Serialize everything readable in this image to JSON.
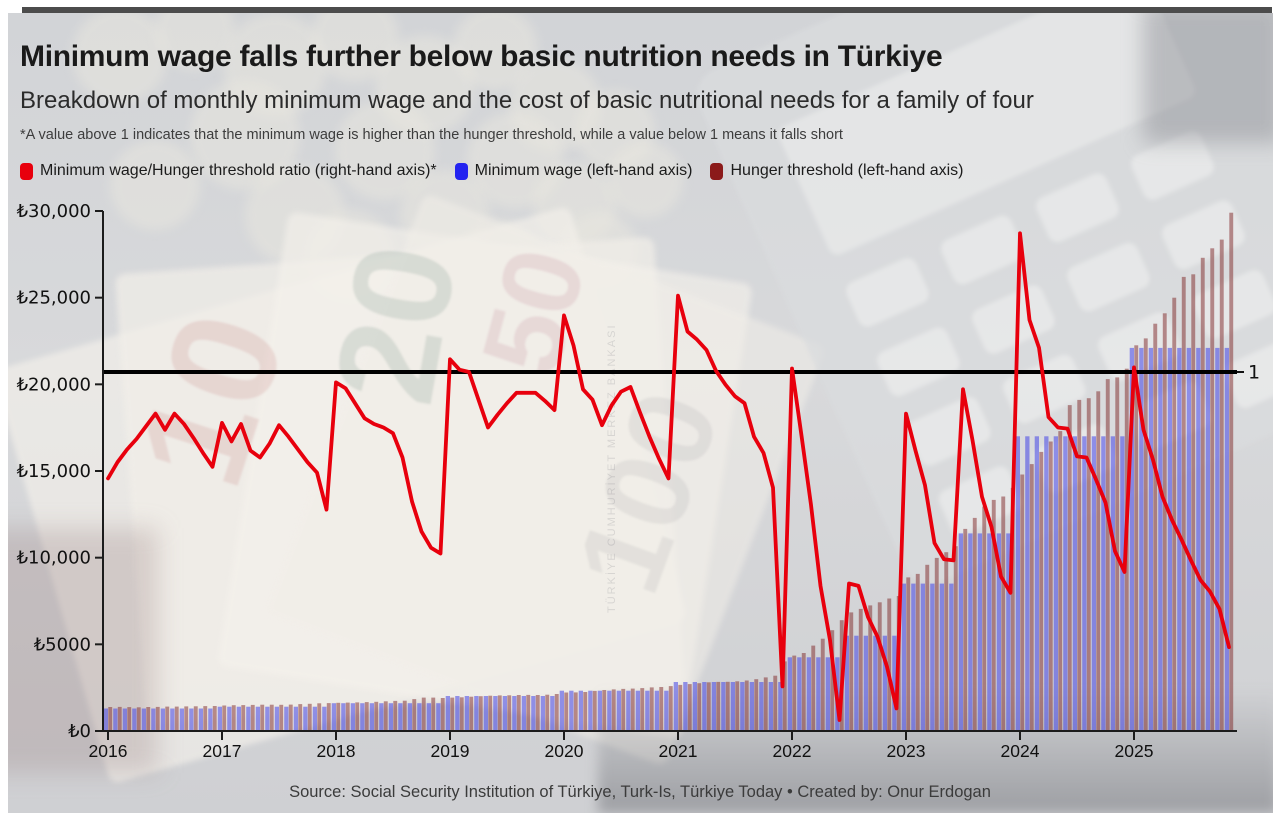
{
  "header": {
    "title": "Minimum wage falls further below basic nutrition needs in Türkiye",
    "subtitle": "Breakdown of monthly minimum wage and the cost of basic nutritional needs for a family of four",
    "footnote": "*A value above 1 indicates that the minimum wage is higher than the hunger threshold, while a value below 1 means it falls short"
  },
  "legend": {
    "items": [
      {
        "label": "Minimum wage/Hunger threshold ratio (right-hand axis)*",
        "color": "#e8000d"
      },
      {
        "label": "Minimum wage (left-hand axis)",
        "color": "#2323f0"
      },
      {
        "label": "Hunger threshold (left-hand axis)",
        "color": "#8b1a1a"
      }
    ]
  },
  "footer": {
    "source": "Source: Social Security Institution of Türkiye, Turk-Is, Türkiye Today • Created by: Onur Erdogan"
  },
  "chart_data": {
    "type": "bar+line",
    "frequency": "monthly",
    "x_start": "2016-01",
    "x_end": "2025-11",
    "x_tick_years": [
      "2016",
      "2017",
      "2018",
      "2019",
      "2020",
      "2021",
      "2022",
      "2023",
      "2024",
      "2025"
    ],
    "left_axis": {
      "currency": "TRY",
      "min": 0,
      "max": 30000,
      "tick_values": [
        0,
        5000,
        10000,
        15000,
        20000,
        25000,
        30000
      ],
      "tick_labels": [
        "₺0",
        "₺5000",
        "₺10,000",
        "₺15,000",
        "₺20,000",
        "₺25,000",
        "₺30,000"
      ]
    },
    "right_axis": {
      "min": 0.69,
      "max": 1.14,
      "visible_label": "1",
      "visible_label_value": 1
    },
    "reference_line": {
      "value": 1,
      "axis": "right",
      "color": "#000000"
    },
    "grid": "off",
    "legend_position": "top-left",
    "series": [
      {
        "name": "Minimum wage",
        "type": "bar",
        "axis": "left",
        "unit": "TRY/month",
        "color": "#4343e6",
        "values": [
          1300,
          1300,
          1300,
          1300,
          1300,
          1300,
          1300,
          1300,
          1300,
          1300,
          1300,
          1300,
          1404,
          1404,
          1404,
          1404,
          1404,
          1404,
          1404,
          1404,
          1404,
          1404,
          1404,
          1404,
          1603,
          1603,
          1603,
          1603,
          1603,
          1603,
          1603,
          1603,
          1603,
          1603,
          1603,
          1603,
          2020,
          2020,
          2020,
          2020,
          2020,
          2020,
          2020,
          2020,
          2020,
          2020,
          2020,
          2020,
          2324,
          2324,
          2324,
          2324,
          2324,
          2324,
          2324,
          2324,
          2324,
          2324,
          2324,
          2324,
          2826,
          2826,
          2826,
          2826,
          2826,
          2826,
          2826,
          2826,
          2826,
          2826,
          2826,
          2826,
          4253,
          4253,
          4253,
          4253,
          4253,
          4253,
          5500,
          5500,
          5500,
          5500,
          5500,
          5500,
          8506,
          8506,
          8506,
          8506,
          8506,
          8506,
          11402,
          11402,
          11402,
          11402,
          11402,
          11402,
          17002,
          17002,
          17002,
          17002,
          17002,
          17002,
          17002,
          17002,
          17002,
          17002,
          17002,
          17002,
          22104,
          22104,
          22104,
          22104,
          22104,
          22104,
          22104,
          22104,
          22104,
          22104,
          22104
        ]
      },
      {
        "name": "Hunger threshold",
        "type": "bar",
        "axis": "left",
        "unit": "TRY/month",
        "color": "#7d2626",
        "values": [
          1386,
          1389,
          1379,
          1369,
          1386,
          1391,
          1408,
          1409,
          1419,
          1424,
          1439,
          1443,
          1473,
          1490,
          1494,
          1504,
          1518,
          1516,
          1513,
          1522,
          1553,
          1572,
          1598,
          1608,
          1626,
          1641,
          1651,
          1669,
          1686,
          1712,
          1737,
          1749,
          1839,
          1928,
          1926,
          1904,
          1929,
          1946,
          1977,
          2009,
          2034,
          2053,
          2062,
          2077,
          2080,
          2079,
          2095,
          2135,
          2219,
          2229,
          2252,
          2315,
          2368,
          2400,
          2428,
          2444,
          2477,
          2516,
          2539,
          2590,
          2660,
          2704,
          2756,
          2810,
          2830,
          2837,
          2866,
          2916,
          2986,
          3093,
          3193,
          4013,
          4349,
          4500,
          4928,
          5323,
          5818,
          6391,
          6840,
          7045,
          7245,
          7425,
          7647,
          7786,
          8864,
          9062,
          9591,
          9988,
          10317,
          10662,
          11658,
          12297,
          12954,
          13334,
          13526,
          14025,
          14800,
          15400,
          16100,
          16700,
          17300,
          18800,
          19100,
          19200,
          19600,
          20300,
          20400,
          20900,
          22250,
          22650,
          23500,
          24100,
          25000,
          26200,
          26350,
          27300,
          27850,
          28350,
          29900
        ]
      },
      {
        "name": "Minimum wage/Hunger threshold ratio",
        "type": "line",
        "axis": "right",
        "unit": "ratio",
        "color": "#e8000d",
        "values": [
          0.908,
          0.922,
          0.933,
          0.942,
          0.953,
          0.964,
          0.95,
          0.964,
          0.955,
          0.943,
          0.93,
          0.918,
          0.956,
          0.94,
          0.955,
          0.932,
          0.926,
          0.938,
          0.954,
          0.944,
          0.933,
          0.922,
          0.913,
          0.881,
          0.991,
          0.986,
          0.973,
          0.96,
          0.955,
          0.952,
          0.947,
          0.926,
          0.888,
          0.862,
          0.848,
          0.843,
          1.011,
          1.002,
          1.0,
          0.976,
          0.952,
          0.963,
          0.973,
          0.982,
          0.982,
          0.982,
          0.975,
          0.967,
          1.049,
          1.023,
          0.985,
          0.976,
          0.954,
          0.971,
          0.983,
          0.987,
          0.965,
          0.944,
          0.925,
          0.908,
          1.066,
          1.035,
          1.028,
          1.019,
          1.001,
          0.989,
          0.979,
          0.973,
          0.944,
          0.93,
          0.9,
          0.728,
          1.003,
          0.945,
          0.885,
          0.815,
          0.768,
          0.699,
          0.817,
          0.815,
          0.788,
          0.771,
          0.745,
          0.709,
          0.964,
          0.932,
          0.902,
          0.852,
          0.838,
          0.837,
          0.985,
          0.941,
          0.892,
          0.866,
          0.823,
          0.809,
          1.12,
          1.045,
          1.021,
          0.961,
          0.952,
          0.951,
          0.927,
          0.926,
          0.907,
          0.887,
          0.845,
          0.827,
          1.004,
          0.95,
          0.924,
          0.892,
          0.872,
          0.855,
          0.837,
          0.82,
          0.81,
          0.795,
          0.762
        ]
      }
    ]
  }
}
